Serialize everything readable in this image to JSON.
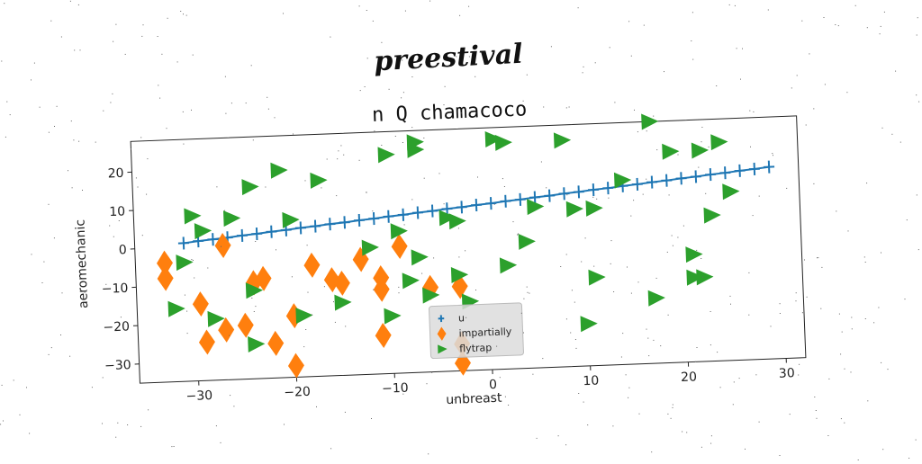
{
  "figure": {
    "suptitle": "preestival"
  },
  "chart_data": {
    "type": "scatter",
    "title": "n Q chamacoco",
    "xlabel": "unbreast",
    "ylabel": "aeromechanic",
    "xlim": [
      -36,
      32
    ],
    "ylim": [
      -35,
      28
    ],
    "xticks": [
      -30,
      -20,
      -10,
      0,
      10,
      20,
      30
    ],
    "yticks": [
      -30,
      -20,
      -10,
      0,
      10,
      20
    ],
    "grid": false,
    "legend_placement": "lower-center",
    "series": [
      {
        "name": "u",
        "marker": "plus",
        "color": "#1f77b4",
        "connected": true,
        "points": [
          [
            -31,
            1
          ],
          [
            -29.5,
            1.4
          ],
          [
            -28,
            1.7
          ],
          [
            -26.5,
            2
          ],
          [
            -25,
            2.4
          ],
          [
            -23.5,
            2.7
          ],
          [
            -22,
            3.1
          ],
          [
            -20.5,
            3.4
          ],
          [
            -19,
            3.8
          ],
          [
            -17.5,
            4.1
          ],
          [
            -16,
            4.5
          ],
          [
            -14.5,
            4.8
          ],
          [
            -13,
            5.2
          ],
          [
            -11.5,
            5.5
          ],
          [
            -10,
            5.9
          ],
          [
            -8.5,
            6.2
          ],
          [
            -7,
            6.6
          ],
          [
            -5.5,
            6.9
          ],
          [
            -4,
            7.3
          ],
          [
            -2.5,
            7.6
          ],
          [
            -1,
            8
          ],
          [
            0.5,
            8.3
          ],
          [
            2,
            8.7
          ],
          [
            3.5,
            9
          ],
          [
            5,
            9.4
          ],
          [
            6.5,
            9.7
          ],
          [
            8,
            10.1
          ],
          [
            9.5,
            10.4
          ],
          [
            11,
            10.8
          ],
          [
            12.5,
            11.1
          ],
          [
            14,
            11.5
          ],
          [
            15.5,
            11.8
          ],
          [
            17,
            12.2
          ],
          [
            18.5,
            12.5
          ],
          [
            20,
            12.9
          ],
          [
            21.5,
            13.2
          ],
          [
            23,
            13.6
          ],
          [
            24.5,
            13.9
          ],
          [
            26,
            14.3
          ],
          [
            27.5,
            14.6
          ],
          [
            29,
            15
          ]
        ]
      },
      {
        "name": "impartially",
        "marker": "thin_diamond",
        "color": "#ff7f0e",
        "points": [
          [
            -33,
            -4
          ],
          [
            -33,
            -8
          ],
          [
            -29.5,
            -15
          ],
          [
            -29,
            -25
          ],
          [
            -27,
            0
          ],
          [
            -27,
            -22
          ],
          [
            -25,
            -21
          ],
          [
            -24,
            -10
          ],
          [
            -23,
            -9
          ],
          [
            -22,
            -26
          ],
          [
            -20,
            -19
          ],
          [
            -20,
            -32
          ],
          [
            -18,
            -6
          ],
          [
            -16,
            -10
          ],
          [
            -15,
            -11
          ],
          [
            -13,
            -5
          ],
          [
            -11,
            -10
          ],
          [
            -11,
            -13
          ],
          [
            -11,
            -25
          ],
          [
            -9,
            -2
          ],
          [
            -6,
            -13
          ],
          [
            -3,
            -13
          ],
          [
            -3,
            -28
          ],
          [
            -3,
            -33
          ]
        ]
      },
      {
        "name": "flytrap",
        "marker": "triangle_right",
        "color": "#2ca02c",
        "points": [
          [
            -32,
            -16
          ],
          [
            -31,
            -4
          ],
          [
            -30,
            8
          ],
          [
            -29,
            4
          ],
          [
            -28,
            -19
          ],
          [
            -26,
            7
          ],
          [
            -24,
            15
          ],
          [
            -24,
            -12
          ],
          [
            -24,
            -26
          ],
          [
            -21,
            19
          ],
          [
            -20,
            6
          ],
          [
            -19,
            -19
          ],
          [
            -17,
            16
          ],
          [
            -15,
            -16
          ],
          [
            -12,
            -2
          ],
          [
            -10,
            -20
          ],
          [
            -10,
            22
          ],
          [
            -9,
            2
          ],
          [
            -8,
            -11
          ],
          [
            -7,
            -5
          ],
          [
            -6,
            -15
          ],
          [
            -7,
            23
          ],
          [
            -7,
            25
          ],
          [
            -4,
            5
          ],
          [
            -3,
            4
          ],
          [
            -3,
            -10
          ],
          [
            -2,
            -17
          ],
          [
            1,
            25
          ],
          [
            2,
            -8
          ],
          [
            2,
            24
          ],
          [
            4,
            -2
          ],
          [
            5,
            7
          ],
          [
            8,
            24
          ],
          [
            9,
            6
          ],
          [
            10,
            -24
          ],
          [
            11,
            -12
          ],
          [
            11,
            6
          ],
          [
            14,
            13
          ],
          [
            17,
            28
          ],
          [
            17,
            -18
          ],
          [
            19,
            20
          ],
          [
            21,
            -7
          ],
          [
            21,
            -13
          ],
          [
            22,
            20
          ],
          [
            22,
            -13
          ],
          [
            23,
            3
          ],
          [
            24,
            22
          ],
          [
            25,
            9
          ]
        ]
      }
    ]
  }
}
